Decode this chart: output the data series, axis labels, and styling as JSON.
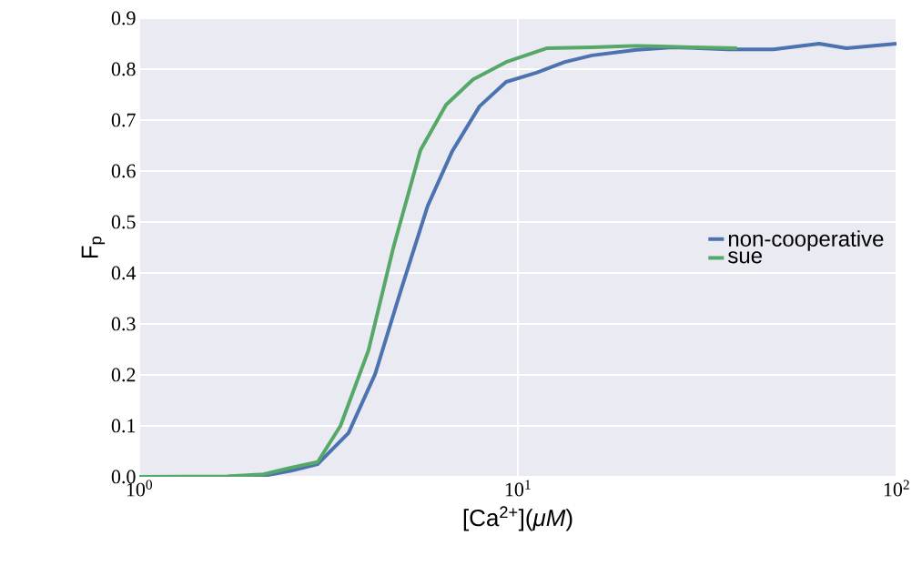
{
  "chart_data": {
    "type": "line",
    "xlabel": "[Ca$^{2+}$](*μM*)",
    "ylabel": "F$_{p}$",
    "log": "x",
    "xlim": [
      1,
      100
    ],
    "xticks": [
      {
        "value": 1,
        "label": "10$^{0}$"
      },
      {
        "value": 10,
        "label": "10$^{1}$"
      },
      {
        "value": 100,
        "label": "10$^{2}$"
      }
    ],
    "ylim": [
      0,
      0.9
    ],
    "yticks": [
      {
        "value": 0,
        "label": "0.0"
      },
      0.1,
      0.2,
      0.3,
      0.4,
      0.5,
      0.6,
      0.7,
      0.8,
      0.9
    ],
    "grid": true,
    "legend": "right",
    "marker": "none",
    "line_style": "solid",
    "series": [
      {
        "name": "non-cooperative",
        "color": "#4c72b0",
        "x": [
          1,
          1.71,
          2.13,
          2.52,
          2.96,
          3.57,
          4.2,
          4.9,
          5.78,
          6.71,
          7.92,
          9.31,
          11.2,
          13.3,
          15.7,
          20.6,
          25.7,
          35.9,
          47.3,
          62.5,
          73.8,
          100
        ],
        "values": [
          0,
          0,
          0.002,
          0.012,
          0.025,
          0.086,
          0.202,
          0.364,
          0.532,
          0.639,
          0.727,
          0.775,
          0.793,
          0.814,
          0.827,
          0.838,
          0.843,
          0.839,
          0.839,
          0.85,
          0.841,
          0.85
        ]
      },
      {
        "name": "sue",
        "color": "#55a868",
        "x": [
          1,
          1.71,
          2.13,
          2.52,
          2.96,
          3.4,
          4.03,
          4.69,
          5.53,
          6.46,
          7.62,
          9.31,
          11.9,
          15.7,
          20.6,
          28.8,
          37.9
        ],
        "values": [
          0,
          0.001,
          0.005,
          0.018,
          0.029,
          0.1,
          0.248,
          0.45,
          0.641,
          0.73,
          0.78,
          0.814,
          0.841,
          0.843,
          0.846,
          0.843,
          0.841
        ]
      }
    ]
  }
}
